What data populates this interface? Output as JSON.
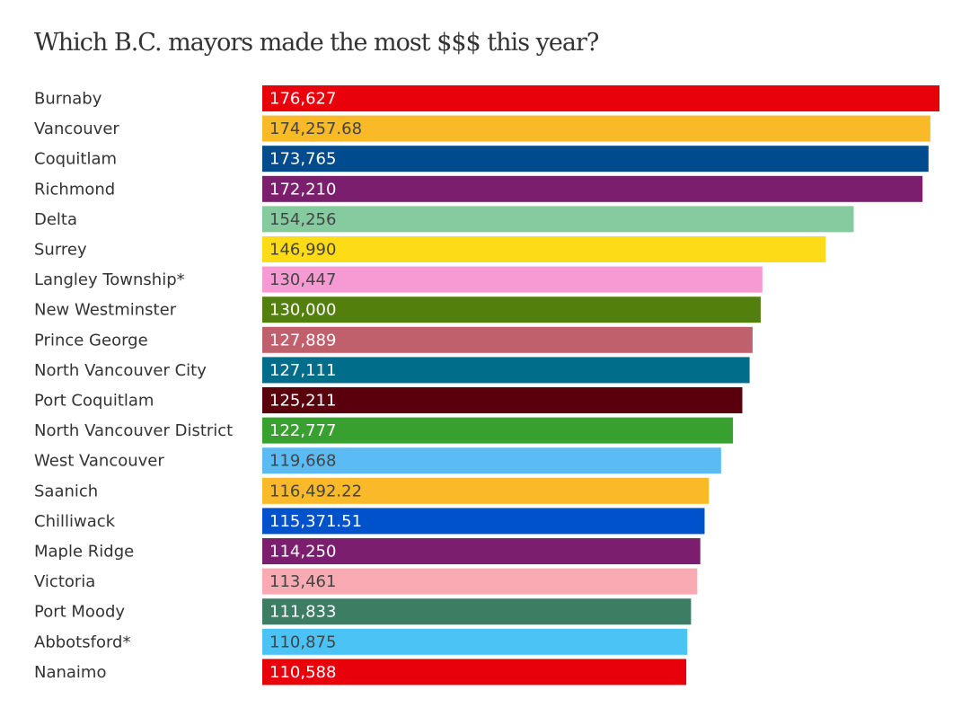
{
  "chart_data": {
    "type": "bar",
    "orientation": "horizontal",
    "title": "Which B.C. mayors made the most $$$ this year?",
    "categories": [
      "Burnaby",
      "Vancouver",
      "Coquitlam",
      "Richmond",
      "Delta",
      "Surrey",
      "Langley Township*",
      "New Westminster",
      "Prince George",
      "North Vancouver City",
      "Port Coquitlam",
      "North Vancouver District",
      "West Vancouver",
      "Saanich",
      "Chilliwack",
      "Maple Ridge",
      "Victoria",
      "Port Moody",
      "Abbotsford*",
      "Nanaimo"
    ],
    "values": [
      176627,
      174257.68,
      173765,
      172210,
      154256,
      146990,
      130447,
      130000,
      127889,
      127111,
      125211,
      122777,
      119668,
      116492.22,
      115371.51,
      114250,
      113461,
      111833,
      110875,
      110588
    ],
    "value_labels": [
      "176,627",
      "174,257.68",
      "173,765",
      "172,210",
      "154,256",
      "146,990",
      "130,447",
      "130,000",
      "127,889",
      "127,111",
      "125,211",
      "122,777",
      "119,668",
      "116,492.22",
      "115,371.51",
      "114,250",
      "113,461",
      "111,833",
      "110,875",
      "110,588"
    ],
    "colors": [
      "#e8000b",
      "#f9b928",
      "#004b8d",
      "#7b1e6e",
      "#86cba0",
      "#fddb16",
      "#f79ad3",
      "#537f0d",
      "#c0606c",
      "#006d8a",
      "#5a000c",
      "#38a02f",
      "#5bbcf5",
      "#f9b928",
      "#0052cc",
      "#7b1e6e",
      "#f9aab2",
      "#3c7d63",
      "#4cc3f5",
      "#e8000b"
    ]
  }
}
